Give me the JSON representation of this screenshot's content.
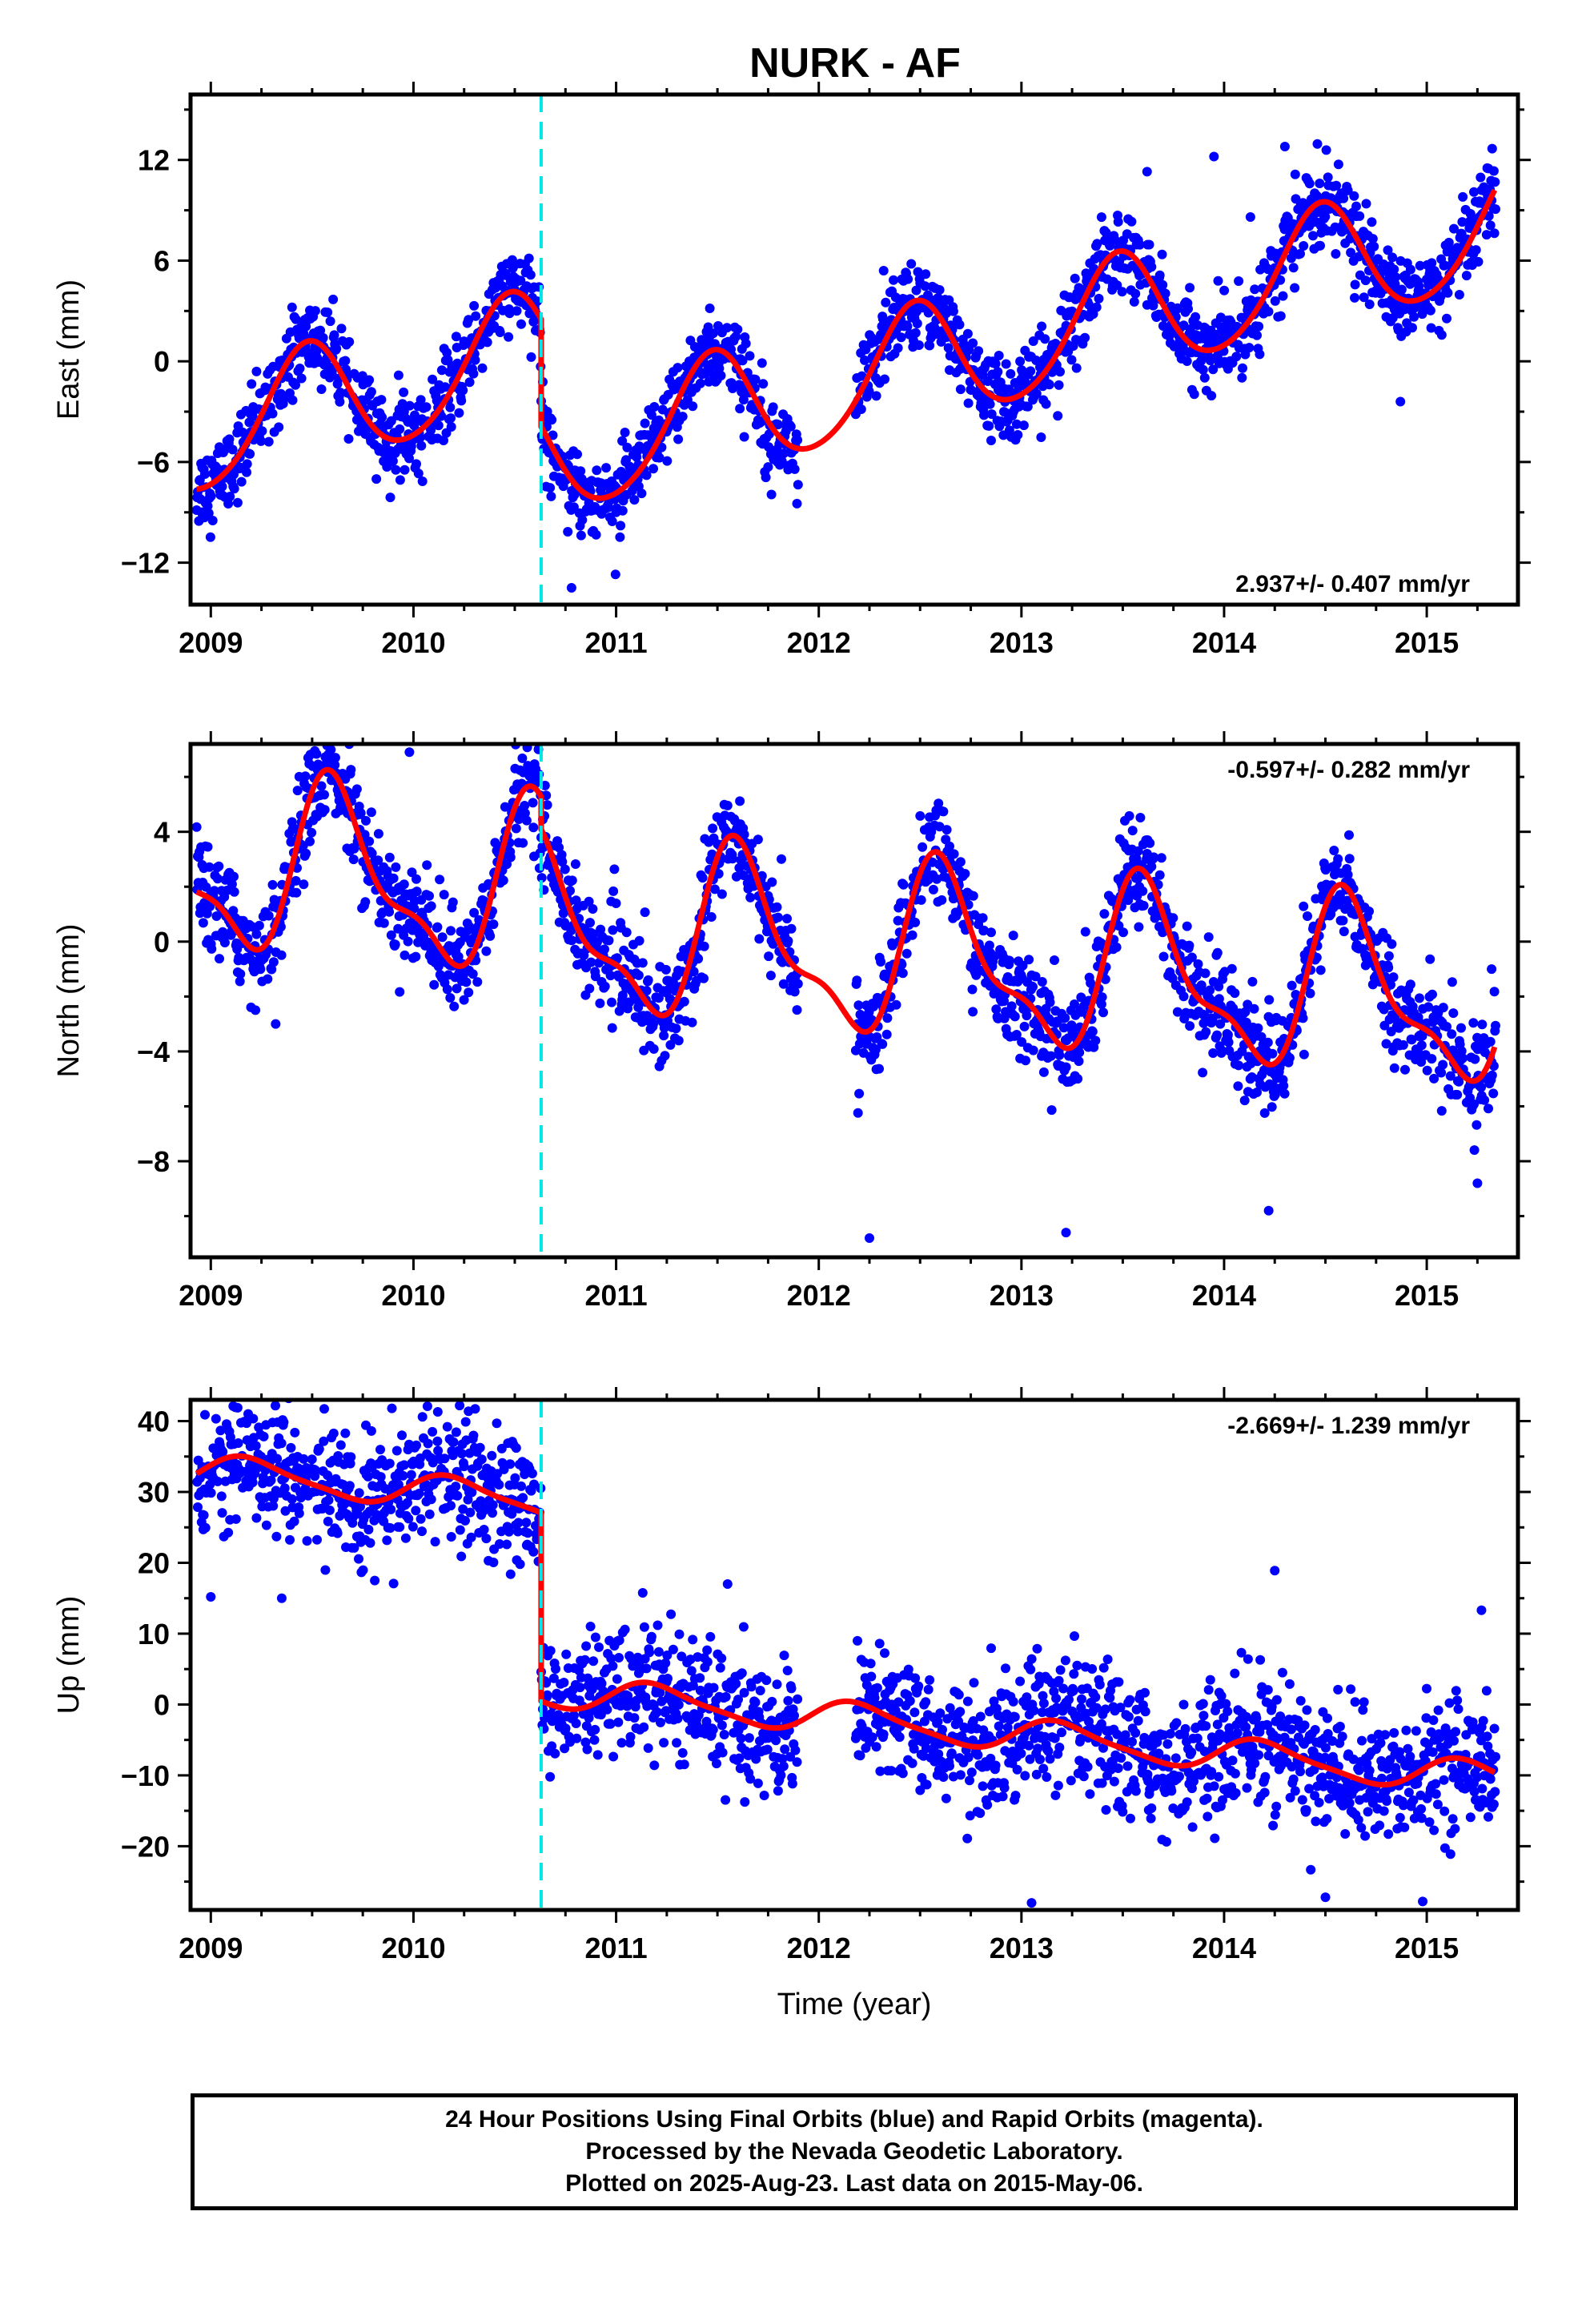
{
  "title": "NURK - AF",
  "caption": {
    "line1": "24 Hour Positions Using Final Orbits (blue) and Rapid Orbits (magenta).",
    "line2": "Processed by the Nevada Geodetic Laboratory.",
    "line3": "Plotted on 2025-Aug-23. Last data on 2015-May-06."
  },
  "colors": {
    "final_orbits": "#0000ff",
    "model": "#ff0000",
    "offset": "#00e5e5",
    "frame": "#000000"
  },
  "chart_data": [
    {
      "type": "scatter",
      "ylabel": "East (mm)",
      "xlabel": "",
      "rate_label": "2.937+/- 0.407 mm/yr",
      "xlim": [
        2008.9,
        2015.45
      ],
      "ylim": [
        -14.5,
        15.9
      ],
      "xticks": [
        2009,
        2010,
        2011,
        2012,
        2013,
        2014,
        2015
      ],
      "yticks": [
        -12,
        -6,
        0,
        6,
        12
      ],
      "offset_epoch": 2010.63,
      "data_range": [
        2008.93,
        2015.34
      ],
      "model": {
        "trend": 2.937,
        "before_offset": {
          "ref": 2010.63,
          "value": 0.6
        },
        "after_offset": {
          "ref": 2010.63,
          "value": -5.8
        },
        "annual_amp": 3.6,
        "annual_peak": 0.47,
        "semiannual_amp": 0.4,
        "semiannual_peak": 0.0
      },
      "scatter_sd": 1.2,
      "outliers": [
        [
          2013.62,
          11.3
        ],
        [
          2013.95,
          12.2
        ],
        [
          2014.3,
          12.8
        ],
        [
          2014.13,
          8.6
        ],
        [
          2010.78,
          -13.5
        ],
        [
          2011.0,
          -9.0
        ],
        [
          2014.87,
          -2.4
        ],
        [
          2012.32,
          5.4
        ]
      ]
    },
    {
      "type": "scatter",
      "ylabel": "North (mm)",
      "xlabel": "",
      "rate_label": "-0.597+/- 0.282 mm/yr",
      "xlim": [
        2008.9,
        2015.45
      ],
      "ylim": [
        -11.5,
        7.2
      ],
      "xticks": [
        2009,
        2010,
        2011,
        2012,
        2013,
        2014,
        2015
      ],
      "yticks": [
        -8,
        -4,
        0,
        4
      ],
      "offset_epoch": 2010.63,
      "data_range": [
        2008.93,
        2015.34
      ],
      "model": {
        "trend": -0.597,
        "before_offset": {
          "ref": 2010.63,
          "value": 1.8
        },
        "after_offset": {
          "ref": 2010.63,
          "value": 0.6
        },
        "annual_amp": 2.9,
        "annual_peak": 0.62,
        "semiannual_amp": 1.1,
        "semiannual_peak": 0.55
      },
      "scatter_sd": 0.9,
      "outliers": [
        [
          2009.98,
          6.9
        ],
        [
          2012.25,
          -10.8
        ],
        [
          2013.22,
          -10.6
        ],
        [
          2014.22,
          -9.8
        ],
        [
          2015.25,
          -8.8
        ],
        [
          2015.32,
          -1.0
        ],
        [
          2009.32,
          -3.0
        ]
      ]
    },
    {
      "type": "scatter",
      "ylabel": "Up (mm)",
      "xlabel": "Time (year)",
      "rate_label": "-2.669+/- 1.239 mm/yr",
      "xlim": [
        2008.9,
        2015.45
      ],
      "ylim": [
        -29,
        43
      ],
      "xticks": [
        2009,
        2010,
        2011,
        2012,
        2013,
        2014,
        2015
      ],
      "yticks": [
        -20,
        -10,
        0,
        10,
        20,
        30,
        40
      ],
      "offset_epoch": 2010.63,
      "data_range": [
        2008.93,
        2015.34
      ],
      "model": {
        "trend": -2.669,
        "before_offset": {
          "ref": 2010.63,
          "value": 28.6
        },
        "after_offset": {
          "ref": 2010.63,
          "value": 2.0
        },
        "annual_amp": 2.2,
        "annual_peak": 0.2,
        "semiannual_amp": 0.5,
        "semiannual_peak": 0.1
      },
      "scatter_sd": 4.5,
      "outliers": [
        [
          2010.12,
          41.3
        ],
        [
          2014.25,
          18.9
        ],
        [
          2015.27,
          13.3
        ],
        [
          2013.05,
          -28.0
        ],
        [
          2014.5,
          -27.2
        ],
        [
          2014.98,
          -27.8
        ],
        [
          2009.35,
          15.0
        ],
        [
          2009.0,
          15.2
        ],
        [
          2011.55,
          17.0
        ]
      ]
    }
  ]
}
